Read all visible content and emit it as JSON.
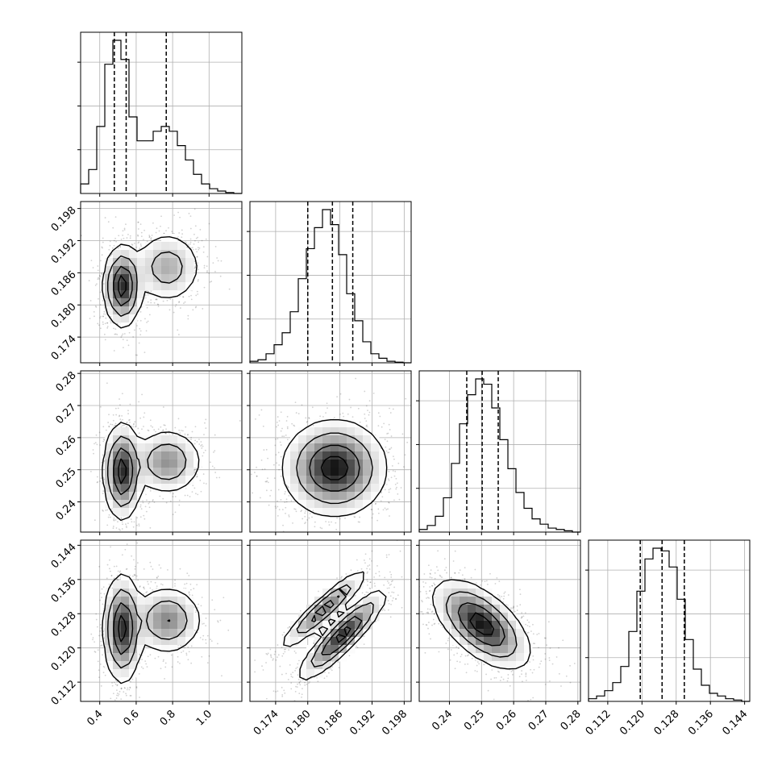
{
  "chart_data": {
    "type": "corner",
    "grid": true,
    "parameters": [
      {
        "ticks": [
          "0.4",
          "0.6",
          "0.8",
          "1.0"
        ],
        "tick_values": [
          0.4,
          0.6,
          0.8,
          1.0
        ],
        "range": [
          0.295,
          1.18
        ]
      },
      {
        "ticks": [
          "0.174",
          "0.180",
          "0.186",
          "0.192",
          "0.198"
        ],
        "tick_values": [
          0.174,
          0.18,
          0.186,
          0.192,
          0.198
        ],
        "range": [
          0.1692,
          0.1993
        ]
      },
      {
        "ticks": [
          "0.24",
          "0.25",
          "0.26",
          "0.27",
          "0.28"
        ],
        "tick_values": [
          0.24,
          0.25,
          0.26,
          0.27,
          0.28
        ],
        "range": [
          0.2306,
          0.2808
        ]
      },
      {
        "ticks": [
          "0.112",
          "0.120",
          "0.128",
          "0.136",
          "0.144"
        ],
        "tick_values": [
          0.112,
          0.12,
          0.128,
          0.136,
          0.144
        ],
        "range": [
          0.1075,
          0.1452
        ]
      }
    ],
    "quantiles": [
      [
        0.48,
        0.545,
        0.765
      ],
      [
        0.18,
        0.1846,
        0.1884
      ],
      [
        0.2454,
        0.2502,
        0.2552
      ],
      [
        0.1196,
        0.1247,
        0.1299
      ]
    ],
    "histograms": [
      [
        2,
        5,
        14,
        27,
        32,
        28,
        16,
        11,
        11,
        13,
        14,
        13,
        10,
        7,
        4,
        2,
        1,
        0.5,
        0.2,
        0
      ],
      [
        0.5,
        1,
        3,
        6,
        10,
        17,
        28,
        38,
        45,
        51,
        46,
        36,
        23,
        14,
        7,
        3,
        1.5,
        0.5,
        0.2,
        0
      ],
      [
        1,
        2.5,
        6,
        13,
        26,
        41,
        52,
        58,
        56,
        47,
        35,
        24,
        15,
        9,
        5,
        3,
        1.5,
        1,
        0.5,
        0
      ],
      [
        1,
        2,
        4,
        7,
        13,
        26,
        41,
        53,
        57,
        56,
        50,
        38,
        23,
        12,
        6,
        3,
        2,
        1,
        0.5,
        0
      ]
    ],
    "correlations": {
      "1,0": {
        "modes": [
          {
            "c": [
              0.525,
              0.1835
            ],
            "s": [
              0.045,
              0.0033
            ],
            "w": 0.6
          },
          {
            "c": [
              0.77,
              0.187
            ],
            "s": [
              0.085,
              0.003
            ],
            "w": 0.4
          }
        ]
      },
      "2,0": {
        "modes": [
          {
            "c": [
              0.525,
              0.2495
            ],
            "s": [
              0.045,
              0.0065
            ],
            "w": 0.6
          },
          {
            "c": [
              0.77,
              0.2525
            ],
            "s": [
              0.085,
              0.0045
            ],
            "w": 0.4
          }
        ]
      },
      "3,0": {
        "modes": [
          {
            "c": [
              0.525,
              0.1245
            ],
            "s": [
              0.045,
              0.0055
            ],
            "w": 0.6
          },
          {
            "c": [
              0.77,
              0.1265
            ],
            "s": [
              0.085,
              0.0035
            ],
            "w": 0.4
          }
        ]
      },
      "2,1": {
        "modes": [
          {
            "c": [
              0.185,
              0.2505
            ],
            "s": [
              0.0042,
              0.0065
            ],
            "w": 1.0
          }
        ]
      },
      "3,1": {
        "modes": [
          {
            "c": [
              0.183,
              0.129
            ],
            "s": [
              0.0035,
              0.004
            ],
            "w": 0.4,
            "rho": 0.93
          },
          {
            "c": [
              0.1865,
              0.123
            ],
            "s": [
              0.0035,
              0.0045
            ],
            "w": 0.6,
            "rho": 0.9
          }
        ]
      },
      "3,2": {
        "modes": [
          {
            "c": [
              0.25,
              0.1255
            ],
            "s": [
              0.0065,
              0.0045
            ],
            "w": 1.0,
            "rho": -0.6
          }
        ]
      }
    }
  }
}
